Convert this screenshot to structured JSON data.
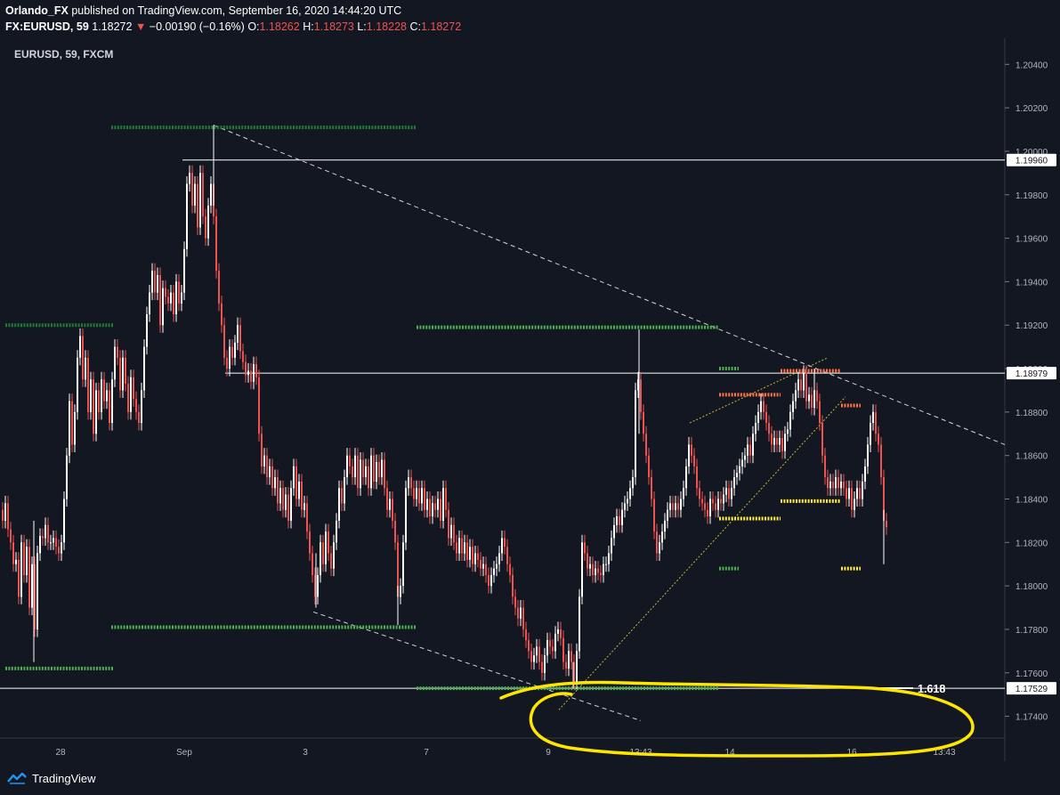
{
  "header": {
    "author": "Orlando_FX",
    "published": " published on TradingView.com, September 16, 2020 14:44:20 UTC",
    "symbol": "FX:EURUSD, 59",
    "last": "1.18272",
    "change_arrow": "▼",
    "change": "−0.00190 (−0.16%)",
    "o_label": "O:",
    "o": "1.18262",
    "h_label": "H:",
    "h": "1.18273",
    "l_label": "L:",
    "l": "1.18228",
    "c_label": "C:",
    "c": "1.18272"
  },
  "chart_label": "EURUSD, 59, FXCM",
  "footer": {
    "brand": "TradingView",
    "logo_icon": "tradingview-logo-icon"
  },
  "colors": {
    "background": "#131722",
    "up": "#ffffff",
    "down": "#ef5350",
    "support_green": "#4caf50",
    "dark_green": "#1e7d32",
    "orange": "#ff7043",
    "yellow_marker": "#ffeb3b",
    "highlight": "#ffe600",
    "trend_dashed": "#d1d4dc"
  },
  "chart_data": {
    "type": "candlestick",
    "y_ticks": [
      "1.20400",
      "1.20200",
      "1.20000",
      "1.19800",
      "1.19600",
      "1.19400",
      "1.19200",
      "1.19000",
      "1.18800",
      "1.18600",
      "1.18400",
      "1.18200",
      "1.18000",
      "1.17800",
      "1.17600",
      "1.17400"
    ],
    "ylim": [
      1.173,
      1.2052
    ],
    "x_ticks": [
      "28",
      "Sep",
      "3",
      "7",
      "9",
      "13:43",
      "14",
      "16",
      "13:43"
    ],
    "price_labels": [
      "1.19960",
      "1.18979",
      "1.17529"
    ],
    "horizontal_levels": [
      1.1996,
      1.18979,
      1.17529
    ],
    "fib_label": "1.618",
    "price_path": [
      [
        0,
        1.1835
      ],
      [
        3,
        1.183
      ],
      [
        6,
        1.1838
      ],
      [
        9,
        1.1826
      ],
      [
        12,
        1.182
      ],
      [
        15,
        1.181
      ],
      [
        18,
        1.1812
      ],
      [
        21,
        1.1795
      ],
      [
        24,
        1.182
      ],
      [
        27,
        1.1805
      ],
      [
        30,
        1.1818
      ],
      [
        33,
        1.179
      ],
      [
        36,
        1.181
      ],
      [
        39,
        1.178
      ],
      [
        42,
        1.1815
      ],
      [
        45,
        1.1823
      ],
      [
        48,
        1.1822
      ],
      [
        51,
        1.1828
      ],
      [
        54,
        1.182
      ],
      [
        57,
        1.182
      ],
      [
        60,
        1.1822
      ],
      [
        63,
        1.1818
      ],
      [
        66,
        1.1815
      ],
      [
        69,
        1.182
      ],
      [
        72,
        1.184
      ],
      [
        75,
        1.186
      ],
      [
        78,
        1.1885
      ],
      [
        81,
        1.1865
      ],
      [
        84,
        1.188
      ],
      [
        87,
        1.1905
      ],
      [
        90,
        1.1915
      ],
      [
        93,
        1.1895
      ],
      [
        96,
        1.1905
      ],
      [
        99,
        1.188
      ],
      [
        102,
        1.1895
      ],
      [
        105,
        1.187
      ],
      [
        108,
        1.189
      ],
      [
        111,
        1.188
      ],
      [
        114,
        1.1895
      ],
      [
        117,
        1.1885
      ],
      [
        120,
        1.189
      ],
      [
        123,
        1.1875
      ],
      [
        126,
        1.1895
      ],
      [
        129,
        1.191
      ],
      [
        132,
        1.1905
      ],
      [
        135,
        1.189
      ],
      [
        138,
        1.1905
      ],
      [
        141,
        1.1893
      ],
      [
        144,
        1.188
      ],
      [
        147,
        1.1896
      ],
      [
        150,
        1.1886
      ],
      [
        153,
        1.188
      ],
      [
        156,
        1.1875
      ],
      [
        159,
        1.189
      ],
      [
        162,
        1.191
      ],
      [
        165,
        1.1925
      ],
      [
        168,
        1.1935
      ],
      [
        171,
        1.1945
      ],
      [
        174,
        1.1935
      ],
      [
        177,
        1.1943
      ],
      [
        180,
        1.192
      ],
      [
        183,
        1.1937
      ],
      [
        186,
        1.1933
      ],
      [
        189,
        1.193
      ],
      [
        192,
        1.1935
      ],
      [
        195,
        1.1925
      ],
      [
        198,
        1.194
      ],
      [
        201,
        1.193
      ],
      [
        204,
        1.1935
      ],
      [
        207,
        1.1955
      ],
      [
        210,
        1.1985
      ],
      [
        213,
        1.199
      ],
      [
        216,
        1.1975
      ],
      [
        219,
        1.1985
      ],
      [
        222,
        1.1965
      ],
      [
        225,
        1.199
      ],
      [
        228,
        1.197
      ],
      [
        231,
        1.196
      ],
      [
        234,
        1.1975
      ],
      [
        237,
        1.1985
      ],
      [
        240,
        1.197
      ],
      [
        243,
        1.1945
      ],
      [
        246,
        1.193
      ],
      [
        249,
        1.192
      ],
      [
        252,
        1.1905
      ],
      [
        255,
        1.19
      ],
      [
        258,
        1.191
      ],
      [
        261,
        1.1905
      ],
      [
        264,
        1.1912
      ],
      [
        267,
        1.192
      ],
      [
        270,
        1.1908
      ],
      [
        273,
        1.1903
      ],
      [
        276,
        1.1897
      ],
      [
        279,
        1.1899
      ],
      [
        282,
        1.1894
      ],
      [
        285,
        1.1902
      ],
      [
        288,
        1.1896
      ],
      [
        291,
        1.187
      ],
      [
        294,
        1.1855
      ],
      [
        297,
        1.186
      ],
      [
        300,
        1.185
      ],
      [
        303,
        1.1855
      ],
      [
        306,
        1.1845
      ],
      [
        309,
        1.185
      ],
      [
        312,
        1.1838
      ],
      [
        315,
        1.1845
      ],
      [
        318,
        1.1835
      ],
      [
        321,
        1.1842
      ],
      [
        324,
        1.183
      ],
      [
        327,
        1.1845
      ],
      [
        330,
        1.1855
      ],
      [
        333,
        1.184
      ],
      [
        336,
        1.1848
      ],
      [
        339,
        1.1835
      ],
      [
        342,
        1.1838
      ],
      [
        345,
        1.1825
      ],
      [
        348,
        1.1815
      ],
      [
        351,
        1.1805
      ],
      [
        354,
        1.1795
      ],
      [
        357,
        1.1805
      ],
      [
        360,
        1.182
      ],
      [
        363,
        1.181
      ],
      [
        366,
        1.1825
      ],
      [
        369,
        1.1815
      ],
      [
        372,
        1.1808
      ],
      [
        375,
        1.182
      ],
      [
        378,
        1.183
      ],
      [
        381,
        1.1845
      ],
      [
        384,
        1.1838
      ],
      [
        387,
        1.185
      ],
      [
        390,
        1.186
      ],
      [
        393,
        1.1855
      ],
      [
        396,
        1.185
      ],
      [
        399,
        1.186
      ],
      [
        402,
        1.1845
      ],
      [
        405,
        1.1858
      ],
      [
        408,
        1.185
      ],
      [
        411,
        1.1855
      ],
      [
        414,
        1.1845
      ],
      [
        417,
        1.186
      ],
      [
        420,
        1.1848
      ],
      [
        423,
        1.1857
      ],
      [
        426,
        1.185
      ],
      [
        429,
        1.1858
      ],
      [
        432,
        1.1845
      ],
      [
        435,
        1.1835
      ],
      [
        438,
        1.184
      ],
      [
        441,
        1.183
      ],
      [
        444,
        1.182
      ],
      [
        447,
        1.1795
      ],
      [
        450,
        1.18
      ],
      [
        453,
        1.182
      ],
      [
        456,
        1.1845
      ],
      [
        459,
        1.185
      ],
      [
        462,
        1.1845
      ],
      [
        465,
        1.184
      ],
      [
        468,
        1.1845
      ],
      [
        471,
        1.1838
      ],
      [
        474,
        1.1845
      ],
      [
        477,
        1.1835
      ],
      [
        480,
        1.184
      ],
      [
        483,
        1.1832
      ],
      [
        486,
        1.1838
      ],
      [
        489,
        1.1835
      ],
      [
        492,
        1.184
      ],
      [
        495,
        1.183
      ],
      [
        498,
        1.1845
      ],
      [
        501,
        1.1835
      ],
      [
        504,
        1.1822
      ],
      [
        507,
        1.1828
      ],
      [
        510,
        1.182
      ],
      [
        513,
        1.1815
      ],
      [
        516,
        1.1822
      ],
      [
        519,
        1.1815
      ],
      [
        522,
        1.182
      ],
      [
        525,
        1.1812
      ],
      [
        528,
        1.1818
      ],
      [
        531,
        1.181
      ],
      [
        534,
        1.1815
      ],
      [
        537,
        1.1812
      ],
      [
        540,
        1.1808
      ],
      [
        543,
        1.181
      ],
      [
        546,
        1.1805
      ],
      [
        549,
        1.18
      ],
      [
        552,
        1.1805
      ],
      [
        555,
        1.1808
      ],
      [
        558,
        1.181
      ],
      [
        561,
        1.1815
      ],
      [
        564,
        1.1822
      ],
      [
        567,
        1.1818
      ],
      [
        570,
        1.181
      ],
      [
        573,
        1.1805
      ],
      [
        576,
        1.1795
      ],
      [
        579,
        1.179
      ],
      [
        582,
        1.1785
      ],
      [
        585,
        1.179
      ],
      [
        588,
        1.178
      ],
      [
        591,
        1.1775
      ],
      [
        594,
        1.177
      ],
      [
        597,
        1.1765
      ],
      [
        600,
        1.1768
      ],
      [
        603,
        1.1772
      ],
      [
        606,
        1.1765
      ],
      [
        609,
        1.176
      ],
      [
        612,
        1.1768
      ],
      [
        615,
        1.1775
      ],
      [
        618,
        1.1772
      ],
      [
        621,
        1.177
      ],
      [
        624,
        1.1778
      ],
      [
        627,
        1.178
      ],
      [
        630,
        1.1776
      ],
      [
        633,
        1.1765
      ],
      [
        636,
        1.1762
      ],
      [
        639,
        1.177
      ],
      [
        642,
        1.1765
      ],
      [
        645,
        1.1756
      ],
      [
        648,
        1.177
      ],
      [
        651,
        1.1795
      ],
      [
        654,
        1.182
      ],
      [
        657,
        1.1815
      ],
      [
        660,
        1.1808
      ],
      [
        663,
        1.181
      ],
      [
        666,
        1.1805
      ],
      [
        669,
        1.1808
      ],
      [
        672,
        1.1806
      ],
      [
        675,
        1.1805
      ],
      [
        678,
        1.181
      ],
      [
        681,
        1.181
      ],
      [
        684,
        1.1815
      ],
      [
        687,
        1.1822
      ],
      [
        690,
        1.1828
      ],
      [
        693,
        1.1832
      ],
      [
        696,
        1.1828
      ],
      [
        699,
        1.1835
      ],
      [
        702,
        1.1838
      ],
      [
        705,
        1.184
      ],
      [
        708,
        1.1845
      ],
      [
        711,
        1.185
      ],
      [
        714,
        1.189
      ],
      [
        717,
        1.1895
      ],
      [
        720,
        1.188
      ],
      [
        723,
        1.187
      ],
      [
        726,
        1.186
      ],
      [
        729,
        1.185
      ],
      [
        732,
        1.184
      ],
      [
        735,
        1.1825
      ],
      [
        738,
        1.1815
      ],
      [
        741,
        1.182
      ],
      [
        744,
        1.1825
      ],
      [
        747,
        1.183
      ],
      [
        750,
        1.1835
      ],
      [
        753,
        1.1838
      ],
      [
        756,
        1.1835
      ],
      [
        759,
        1.1838
      ],
      [
        762,
        1.1835
      ],
      [
        765,
        1.184
      ],
      [
        768,
        1.1845
      ],
      [
        771,
        1.1855
      ],
      [
        774,
        1.1865
      ],
      [
        777,
        1.186
      ],
      [
        780,
        1.1855
      ],
      [
        783,
        1.1845
      ],
      [
        786,
        1.184
      ],
      [
        789,
        1.1838
      ],
      [
        792,
        1.1835
      ],
      [
        795,
        1.1832
      ],
      [
        798,
        1.184
      ],
      [
        801,
        1.1838
      ],
      [
        804,
        1.1835
      ],
      [
        807,
        1.184
      ],
      [
        810,
        1.1838
      ],
      [
        813,
        1.1842
      ],
      [
        816,
        1.1845
      ],
      [
        819,
        1.184
      ],
      [
        822,
        1.1845
      ],
      [
        825,
        1.185
      ],
      [
        828,
        1.1852
      ],
      [
        831,
        1.1855
      ],
      [
        834,
        1.1858
      ],
      [
        837,
        1.186
      ],
      [
        840,
        1.1865
      ],
      [
        843,
        1.186
      ],
      [
        846,
        1.187
      ],
      [
        849,
        1.1875
      ],
      [
        852,
        1.188
      ],
      [
        855,
        1.1885
      ],
      [
        858,
        1.188
      ],
      [
        861,
        1.1875
      ],
      [
        864,
        1.187
      ],
      [
        867,
        1.1865
      ],
      [
        870,
        1.1868
      ],
      [
        873,
        1.1865
      ],
      [
        876,
        1.1868
      ],
      [
        879,
        1.1862
      ],
      [
        882,
        1.187
      ],
      [
        885,
        1.1872
      ],
      [
        888,
        1.188
      ],
      [
        891,
        1.1885
      ],
      [
        894,
        1.189
      ],
      [
        897,
        1.1895
      ],
      [
        900,
        1.189
      ],
      [
        903,
        1.1898
      ],
      [
        906,
        1.1885
      ],
      [
        909,
        1.1888
      ],
      [
        912,
        1.1882
      ],
      [
        915,
        1.189
      ],
      [
        918,
        1.1885
      ],
      [
        921,
        1.1875
      ],
      [
        924,
        1.186
      ],
      [
        927,
        1.185
      ],
      [
        930,
        1.1845
      ],
      [
        933,
        1.1848
      ],
      [
        936,
        1.1845
      ],
      [
        939,
        1.185
      ],
      [
        942,
        1.1845
      ],
      [
        945,
        1.1848
      ],
      [
        948,
        1.1845
      ],
      [
        951,
        1.184
      ],
      [
        954,
        1.1845
      ],
      [
        957,
        1.1835
      ],
      [
        960,
        1.184
      ],
      [
        963,
        1.1845
      ],
      [
        966,
        1.184
      ],
      [
        969,
        1.1848
      ],
      [
        972,
        1.1855
      ],
      [
        975,
        1.1865
      ],
      [
        978,
        1.1875
      ],
      [
        981,
        1.188
      ],
      [
        984,
        1.187
      ],
      [
        987,
        1.1865
      ],
      [
        990,
        1.185
      ],
      [
        993,
        1.183
      ],
      [
        996,
        1.1827
      ]
    ],
    "wicks": [
      [
        38,
        1.1765,
        1.183
      ],
      [
        240,
        1.1975,
        1.2012
      ],
      [
        355,
        1.179,
        1.1815
      ],
      [
        447,
        1.1782,
        1.18
      ],
      [
        644,
        1.1753,
        1.1765
      ],
      [
        718,
        1.187,
        1.1918
      ],
      [
        915,
        1.188,
        1.19
      ],
      [
        993,
        1.181,
        1.1835
      ]
    ],
    "annotations": [
      {
        "kind": "dots",
        "color": "dark_green",
        "x1": 125,
        "x2": 468,
        "y": 1.2011
      },
      {
        "kind": "dots",
        "color": "dark_green",
        "x1": 6,
        "x2": 127,
        "y": 1.192
      },
      {
        "kind": "dots",
        "color": "support_green",
        "x1": 468,
        "x2": 807,
        "y": 1.1919
      },
      {
        "kind": "dots",
        "color": "support_green",
        "x1": 125,
        "x2": 468,
        "y": 1.1781
      },
      {
        "kind": "dots",
        "color": "support_green",
        "x1": 6,
        "x2": 127,
        "y": 1.1762
      },
      {
        "kind": "dots",
        "color": "support_green",
        "x1": 468,
        "x2": 807,
        "y": 1.17529
      },
      {
        "kind": "dots",
        "color": "support_green",
        "x1": 808,
        "x2": 830,
        "y": 1.19
      },
      {
        "kind": "dots",
        "color": "support_green",
        "x1": 808,
        "x2": 830,
        "y": 1.1808
      },
      {
        "kind": "dots",
        "color": "orange",
        "x1": 808,
        "x2": 877,
        "y": 1.1888
      },
      {
        "kind": "dots",
        "color": "orange",
        "x1": 877,
        "x2": 945,
        "y": 1.1899
      },
      {
        "kind": "dots",
        "color": "orange",
        "x1": 945,
        "x2": 967,
        "y": 1.1883
      },
      {
        "kind": "dots",
        "color": "yellow_marker",
        "x1": 808,
        "x2": 877,
        "y": 1.1831
      },
      {
        "kind": "dots",
        "color": "yellow_marker",
        "x1": 877,
        "x2": 945,
        "y": 1.1839
      },
      {
        "kind": "dots",
        "color": "yellow_marker",
        "x1": 945,
        "x2": 967,
        "y": 1.1808
      }
    ]
  }
}
